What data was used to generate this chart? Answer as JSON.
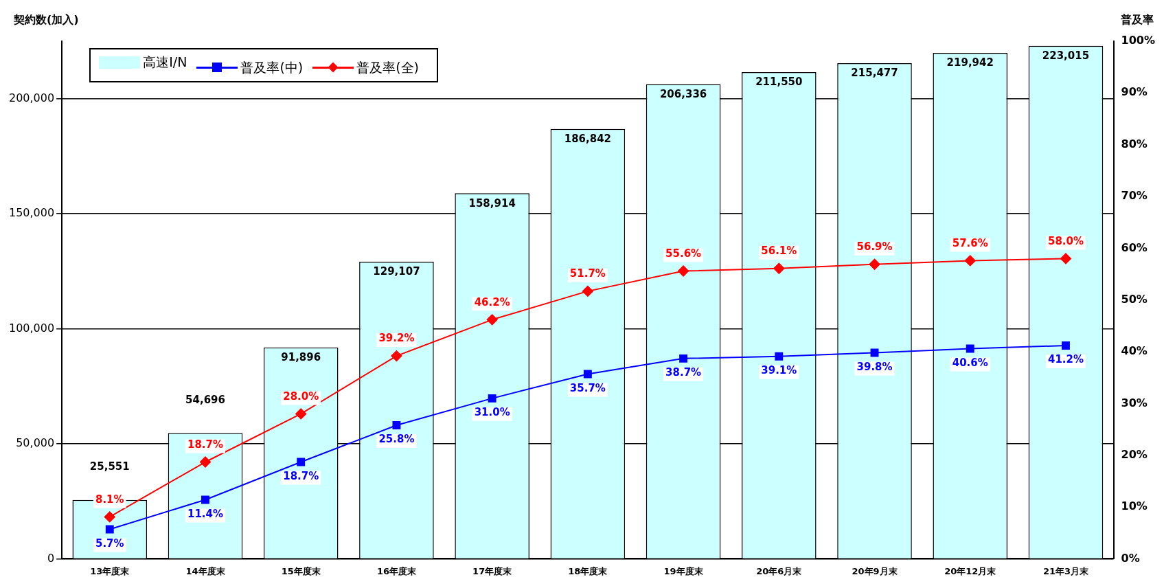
{
  "chart_data": {
    "type": "bar",
    "ylabel": "契約数(加入)",
    "y2label": "普及率",
    "categories": [
      "13年度末",
      "14年度末",
      "15年度末",
      "16年度末",
      "17年度末",
      "18年度末",
      "19年度末",
      "20年6月末",
      "20年9月末",
      "20年12月末",
      "21年3月末"
    ],
    "series": [
      {
        "name": "高速I/N",
        "color": "#ccffff",
        "values": [
          25551,
          54696,
          91896,
          129107,
          158914,
          186842,
          206336,
          211550,
          215477,
          219942,
          223015
        ],
        "value_labels": [
          "25,551",
          "54,696",
          "91,896",
          "129,107",
          "158,914",
          "186,842",
          "206,336",
          "211,550",
          "215,477",
          "219,942",
          "223,015"
        ]
      },
      {
        "name": "普及率(中)",
        "type": "line",
        "axis": "y2",
        "color": "#0000ff",
        "marker": "square",
        "values": [
          5.7,
          11.4,
          18.7,
          25.8,
          31.0,
          35.7,
          38.7,
          39.1,
          39.8,
          40.6,
          41.2
        ],
        "value_labels": [
          "5.7%",
          "11.4%",
          "18.7%",
          "25.8%",
          "31.0%",
          "35.7%",
          "38.7%",
          "39.1%",
          "39.8%",
          "40.6%",
          "41.2%"
        ]
      },
      {
        "name": "普及率(全)",
        "type": "line",
        "axis": "y2",
        "color": "#ff0000",
        "marker": "diamond",
        "values": [
          8.1,
          18.7,
          28.0,
          39.2,
          46.2,
          51.7,
          55.6,
          56.1,
          56.9,
          57.6,
          58.0
        ],
        "value_labels": [
          "8.1%",
          "18.7%",
          "28.0%",
          "39.2%",
          "46.2%",
          "51.7%",
          "55.6%",
          "56.1%",
          "56.9%",
          "57.6%",
          "58.0%"
        ]
      }
    ],
    "ylim": [
      0,
      225000
    ],
    "yticks": [
      {
        "value": 0,
        "label": "0"
      },
      {
        "value": 50000,
        "label": "50,000"
      },
      {
        "value": 100000,
        "label": "100,000"
      },
      {
        "value": 150000,
        "label": "150,000"
      },
      {
        "value": 200000,
        "label": "200,000"
      }
    ],
    "y2lim": [
      0,
      100
    ],
    "y2ticks": [
      {
        "value": 0,
        "label": "0%"
      },
      {
        "value": 10,
        "label": "10%"
      },
      {
        "value": 20,
        "label": "20%"
      },
      {
        "value": 30,
        "label": "30%"
      },
      {
        "value": 40,
        "label": "40%"
      },
      {
        "value": 50,
        "label": "50%"
      },
      {
        "value": 60,
        "label": "60%"
      },
      {
        "value": 70,
        "label": "70%"
      },
      {
        "value": 80,
        "label": "80%"
      },
      {
        "value": 90,
        "label": "90%"
      },
      {
        "value": 100,
        "label": "100%"
      }
    ],
    "grid": "y",
    "legend": "top left",
    "line_style": "solid"
  }
}
